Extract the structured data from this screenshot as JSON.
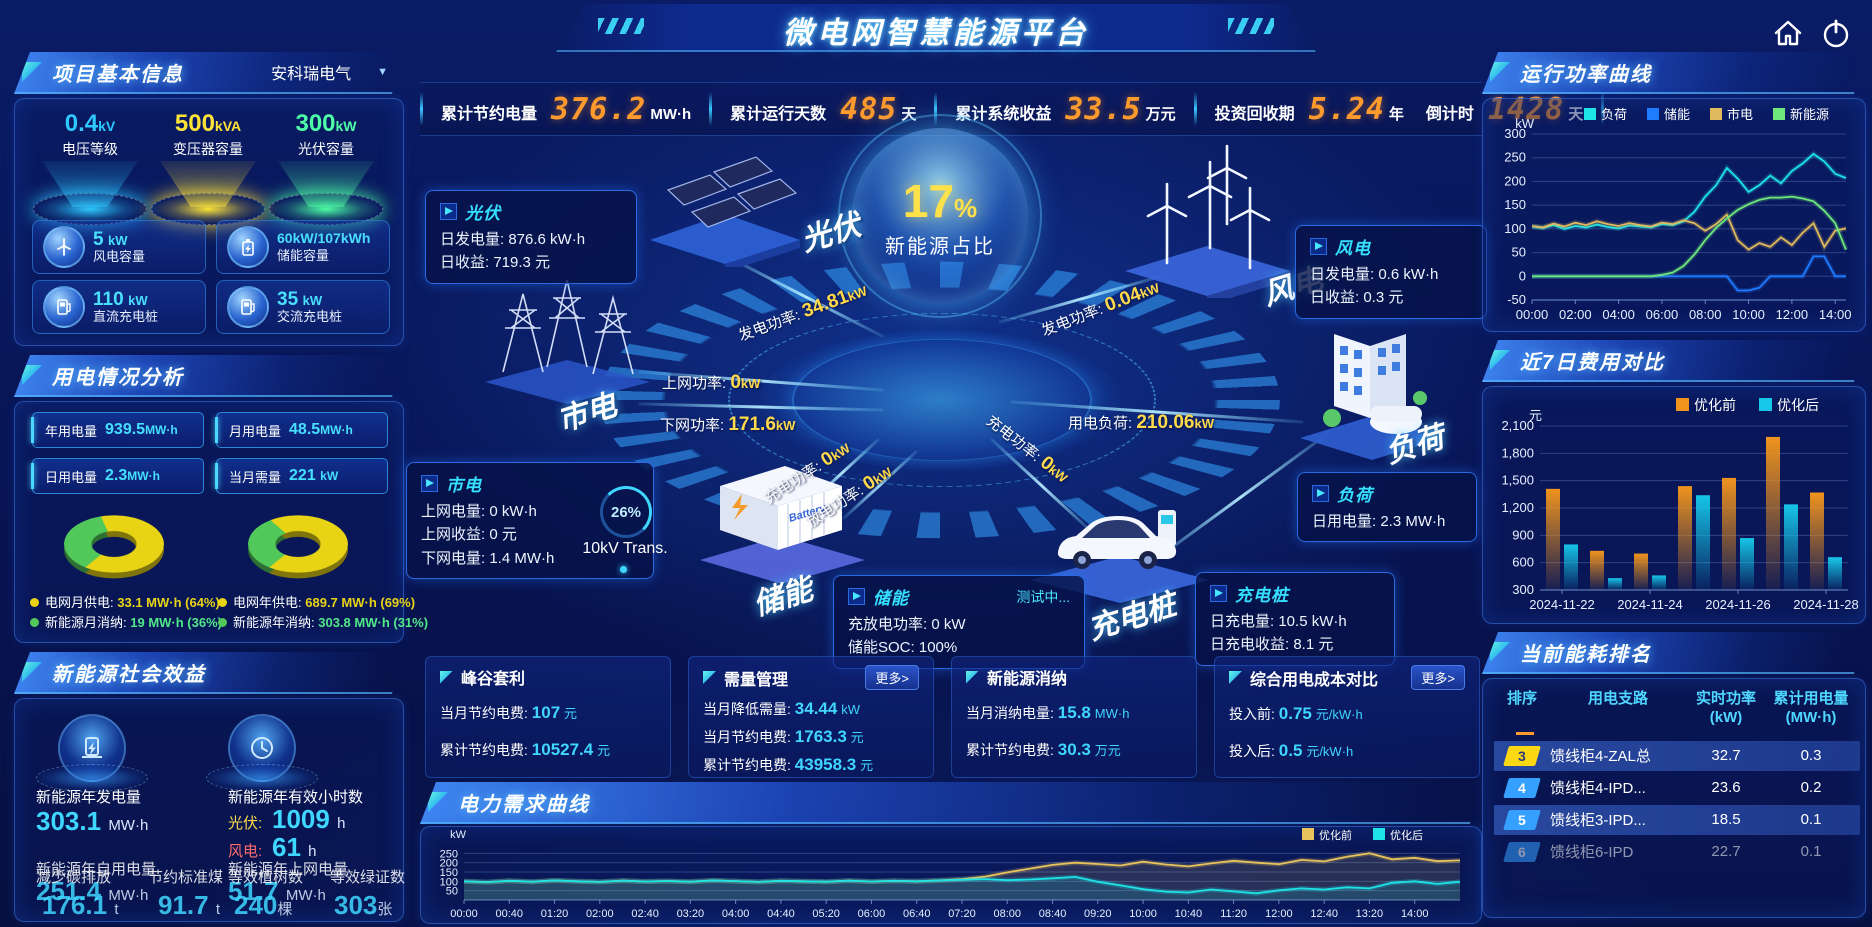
{
  "header": {
    "title": "微电网智慧能源平台"
  },
  "topbar": {
    "stats": [
      {
        "label": "累计节约电量",
        "value": "376.2",
        "unit": "MW·h"
      },
      {
        "label": "累计运行天数",
        "value": "485",
        "unit": "天"
      },
      {
        "label": "累计系统收益",
        "value": "33.5",
        "unit": "万元"
      },
      {
        "label": "投资回收期",
        "value": "5.24",
        "unit": "年"
      },
      {
        "label": "倒计时",
        "value": "1428",
        "unit": "天"
      }
    ]
  },
  "left": {
    "project": {
      "title": "项目基本信息",
      "company": "安科瑞电气",
      "pedestals": [
        {
          "value": "0.4",
          "unit": "kV",
          "label": "电压等级",
          "color": "#2ec8ff"
        },
        {
          "value": "500",
          "unit": "kVA",
          "label": "变压器容量",
          "color": "#ffe339"
        },
        {
          "value": "300",
          "unit": "kW",
          "label": "光伏容量",
          "color": "#4dffa6"
        }
      ],
      "cards": [
        {
          "value": "5",
          "unit": "kW",
          "label": "风电容量"
        },
        {
          "value": "60kW/107kWh",
          "unit": "",
          "label": "储能容量"
        },
        {
          "value": "110",
          "unit": "kW",
          "label": "直流充电桩"
        },
        {
          "value": "35",
          "unit": "kW",
          "label": "交流充电桩"
        }
      ]
    },
    "usage": {
      "title": "用电情况分析",
      "stats": [
        {
          "label": "年用电量",
          "value": "939.5",
          "unit": "MW·h"
        },
        {
          "label": "月用电量",
          "value": "48.5",
          "unit": "MW·h"
        },
        {
          "label": "日用电量",
          "value": "2.3",
          "unit": "MW·h"
        },
        {
          "label": "当月需量",
          "value": "221",
          "unit": "kW"
        }
      ],
      "month_donut": {
        "type": "pie",
        "slices": [
          {
            "label": "电网月供电",
            "value": 64,
            "color": "#e8d415"
          },
          {
            "label": "新能源月消纳",
            "value": 36,
            "color": "#52c85a"
          }
        ]
      },
      "year_donut": {
        "type": "pie",
        "slices": [
          {
            "label": "电网年供电",
            "value": 69,
            "color": "#e8d415"
          },
          {
            "label": "新能源年消纳",
            "value": 31,
            "color": "#52c85a"
          }
        ]
      },
      "legends": [
        {
          "label": "电网月供电:",
          "value": "33.1 MW·h (64%)",
          "color": "#e8d415"
        },
        {
          "label": "新能源月消纳:",
          "value": "19 MW·h (36%)",
          "color": "#52c85a"
        },
        {
          "label": "电网年供电:",
          "value": "689.7 MW·h (69%)",
          "color": "#e8d415"
        },
        {
          "label": "新能源年消纳:",
          "value": "303.8 MW·h (31%)",
          "color": "#52c85a"
        }
      ]
    },
    "benefits": {
      "title": "新能源社会效益",
      "gen": {
        "label": "新能源年发电量",
        "value": "303.1",
        "unit": "MW·h"
      },
      "hours": {
        "label": "新能源年有效小时数",
        "pv_k": "光伏:",
        "pv_v": "1009",
        "pv_u": "h",
        "wind_k": "风电:",
        "wind_v": "61",
        "wind_u": "h"
      },
      "self_use": {
        "label": "新能源年自用电量",
        "value": "251.4",
        "unit": "MW·h"
      },
      "to_grid": {
        "label": "新能源年上网电量",
        "value": "51.7",
        "unit": "MW·h"
      },
      "co2": {
        "label": "减少碳排放",
        "value": "176.1",
        "unit": "t"
      },
      "coal": {
        "label": "节约标准煤",
        "value": "91.7",
        "unit": "t"
      },
      "trees": {
        "label": "等效植树数",
        "value": "240",
        "unit": "棵"
      },
      "certs": {
        "label": "等效绿证数",
        "value": "303",
        "unit": "张"
      }
    }
  },
  "center": {
    "bubble": {
      "percent": "17",
      "pct_sign": "%",
      "label": "新能源占比"
    },
    "nodes": {
      "pv": {
        "name": "光伏"
      },
      "wind": {
        "name": "风电"
      },
      "grid": {
        "name": "市电"
      },
      "load": {
        "name": "负荷"
      },
      "storage": {
        "name": "储能"
      },
      "charger": {
        "name": "充电桩"
      }
    },
    "panels": {
      "pv": {
        "title": "光伏",
        "r1k": "日发电量:",
        "r1v": "876.6 kW·h",
        "r2k": "日收益:",
        "r2v": "719.3 元"
      },
      "wind": {
        "title": "风电",
        "r1k": "日发电量:",
        "r1v": "0.6 kW·h",
        "r2k": "日收益:",
        "r2v": "0.3 元"
      },
      "grid": {
        "title": "市电",
        "r1k": "上网电量:",
        "r1v": "0 kW·h",
        "r2k": "上网收益:",
        "r2v": "0 元",
        "r3k": "下网电量:",
        "r3v": "1.4 MW·h"
      },
      "load": {
        "title": "负荷",
        "r1k": "日用电量:",
        "r1v": "2.3 MW·h"
      },
      "storage": {
        "title": "储能",
        "status": "测试中...",
        "r1k": "充放电功率:",
        "r1v": "0 kW",
        "r2k": "储能SOC:",
        "r2v": "100%"
      },
      "charger": {
        "title": "充电桩",
        "r1k": "日充电量:",
        "r1v": "10.5 kW·h",
        "r2k": "日充电收益:",
        "r2v": "8.1 元"
      }
    },
    "flows": [
      {
        "label": "发电功率:",
        "value": "34.81",
        "unit": "kW"
      },
      {
        "label": "上网功率:",
        "value": "0",
        "unit": "kW"
      },
      {
        "label": "下网功率:",
        "value": "171.6",
        "unit": "kW"
      },
      {
        "label": "发电功率:",
        "value": "0.04",
        "unit": "kW"
      },
      {
        "label": "用电负荷:",
        "value": "210.06",
        "unit": "kW"
      },
      {
        "label": "充电功率:",
        "value": "0",
        "unit": "kW"
      },
      {
        "label": "放电功率:",
        "value": "0",
        "unit": "kW"
      },
      {
        "label": "充电功率:",
        "value": "0",
        "unit": "kW"
      }
    ],
    "transformer": {
      "percent": "26%",
      "label": "10kV Trans."
    },
    "kpi_panels": [
      {
        "title": "峰谷套利",
        "more": "",
        "rows": [
          {
            "k": "当月节约电费:",
            "v": "107",
            "u": "元"
          },
          {
            "k": "累计节约电费:",
            "v": "10527.4",
            "u": "元"
          }
        ]
      },
      {
        "title": "需量管理",
        "more": "更多>",
        "rows": [
          {
            "k": "当月降低需量:",
            "v": "34.44",
            "u": "kW"
          },
          {
            "k": "当月节约电费:",
            "v": "1763.3",
            "u": "元"
          },
          {
            "k": "累计节约电费:",
            "v": "43958.3",
            "u": "元"
          }
        ]
      },
      {
        "title": "新能源消纳",
        "more": "",
        "rows": [
          {
            "k": "当月消纳电量:",
            "v": "15.8",
            "u": "MW·h"
          },
          {
            "k": "累计节约电费:",
            "v": "30.3",
            "u": "万元"
          }
        ]
      },
      {
        "title": "综合用电成本对比",
        "more": "更多>",
        "rows": [
          {
            "k": "投入前:",
            "v": "0.75",
            "u": "元/kW·h"
          },
          {
            "k": "投入后:",
            "v": "0.5",
            "u": "元/kW·h"
          }
        ]
      }
    ],
    "demand_title": "电力需求曲线"
  },
  "right": {
    "power_title": "运行功率曲线",
    "cost_title": "近7日费用对比",
    "ranking": {
      "title": "当前能耗排名",
      "columns": [
        {
          "t": "排序",
          "u": ""
        },
        {
          "t": "用电支路",
          "u": ""
        },
        {
          "t": "实时功率",
          "u": "(kW)"
        },
        {
          "t": "累计用电量",
          "u": "(MW·h)"
        }
      ],
      "rows": [
        {
          "rank": "3",
          "name": "馈线柜4-ZAL总",
          "power": "32.7",
          "energy": "0.3"
        },
        {
          "rank": "4",
          "name": "馈线柜4-IPD...",
          "power": "23.6",
          "energy": "0.2"
        },
        {
          "rank": "5",
          "name": "馈线柜3-IPD...",
          "power": "18.5",
          "energy": "0.1"
        },
        {
          "rank": "6",
          "name": "馈线柜6-IPD",
          "power": "22.7",
          "energy": "0.1"
        }
      ]
    }
  },
  "chart_data": [
    {
      "id": "power-curve",
      "type": "line",
      "title": "运行功率曲线",
      "ylabel": "kW",
      "ylim": [
        -50,
        300
      ],
      "yticks": [
        300,
        250,
        200,
        150,
        100,
        50,
        0,
        -50
      ],
      "x_hours_max": 14.5,
      "xtick_hours": [
        0,
        2,
        4,
        6,
        8,
        10,
        12,
        14
      ],
      "xticks": [
        "00:00",
        "02:00",
        "04:00",
        "06:00",
        "08:00",
        "10:00",
        "12:00",
        "14:00"
      ],
      "legend_position": "top",
      "grid": true,
      "series": [
        {
          "name": "负荷",
          "color": "#1ee3e6",
          "values": [
            105,
            102,
            108,
            100,
            106,
            103,
            109,
            104,
            101,
            107,
            105,
            103,
            110,
            108,
            116,
            136,
            168,
            192,
            228,
            206,
            178,
            192,
            212,
            196,
            222,
            238,
            258,
            242,
            216,
            207
          ]
        },
        {
          "name": "储能",
          "color": "#1f7bff",
          "values": [
            0,
            0,
            0,
            0,
            0,
            0,
            0,
            0,
            0,
            0,
            0,
            0,
            0,
            0,
            0,
            0,
            0,
            0,
            0,
            -30,
            -30,
            -24,
            0,
            0,
            0,
            0,
            42,
            42,
            0,
            0
          ]
        },
        {
          "name": "市电",
          "color": "#e0b95c",
          "values": [
            106,
            103,
            111,
            105,
            113,
            108,
            116,
            110,
            106,
            112,
            108,
            105,
            113,
            110,
            118,
            112,
            96,
            110,
            130,
            76,
            56,
            70,
            62,
            82,
            66,
            92,
            112,
            62,
            96,
            101
          ]
        },
        {
          "name": "新能源",
          "color": "#6ee87a",
          "values": [
            0,
            0,
            0,
            0,
            0,
            0,
            0,
            0,
            0,
            0,
            0,
            0,
            3,
            8,
            22,
            46,
            76,
            102,
            122,
            140,
            152,
            161,
            166,
            166,
            168,
            164,
            158,
            138,
            112,
            56
          ]
        }
      ]
    },
    {
      "id": "cost-compare",
      "type": "bar",
      "title": "近7日费用对比",
      "ylabel": "元",
      "ylim": [
        300,
        2100
      ],
      "yticks": [
        2100,
        1800,
        1500,
        1200,
        900,
        600,
        300
      ],
      "categories": [
        "2024-11-22",
        "2024-11-23",
        "2024-11-24",
        "2024-11-25",
        "2024-11-26",
        "2024-11-27",
        "2024-11-28"
      ],
      "xtick_labels": [
        "2024-11-22",
        "2024-11-24",
        "2024-11-26",
        "2024-11-28"
      ],
      "legend_position": "top",
      "grid": true,
      "series": [
        {
          "name": "优化前",
          "color": "#f0941e",
          "values": [
            1410,
            730,
            700,
            1440,
            1530,
            1980,
            1370
          ]
        },
        {
          "name": "优化后",
          "color": "#17c6e8",
          "values": [
            800,
            430,
            460,
            1340,
            870,
            1240,
            660
          ]
        }
      ]
    },
    {
      "id": "demand-curve",
      "type": "line",
      "title": "电力需求曲线",
      "ylabel": "kW",
      "ylim": [
        0,
        300
      ],
      "yticks": [
        250,
        200,
        150,
        100,
        50
      ],
      "x_hours_max": 14.667,
      "xtick_hours": [
        0,
        0.667,
        1.333,
        2,
        2.667,
        3.333,
        4,
        4.667,
        5.333,
        6,
        6.667,
        7.333,
        8,
        8.667,
        9.333,
        10,
        10.667,
        11.333,
        12,
        12.667,
        13.333,
        14
      ],
      "xticks": [
        "00:00",
        "00:40",
        "01:20",
        "02:00",
        "02:40",
        "03:20",
        "04:00",
        "04:40",
        "05:20",
        "06:00",
        "06:40",
        "07:20",
        "08:00",
        "08:40",
        "09:20",
        "10:00",
        "10:40",
        "11:20",
        "12:00",
        "12:40",
        "13:20",
        "14:00"
      ],
      "legend_position": "top-right",
      "grid": true,
      "fill": true,
      "series": [
        {
          "name": "优化前",
          "color": "#e8c35c",
          "values": [
            100,
            96,
            103,
            98,
            105,
            100,
            97,
            104,
            99,
            102,
            98,
            105,
            101,
            97,
            103,
            100,
            98,
            104,
            99,
            103,
            100,
            105,
            112,
            125,
            148,
            168,
            188,
            200,
            193,
            185,
            205,
            190,
            180,
            196,
            210,
            200,
            192,
            215,
            207,
            232,
            250,
            218,
            226,
            208,
            212
          ]
        },
        {
          "name": "优化后",
          "color": "#1ee3e6",
          "values": [
            100,
            96,
            103,
            98,
            105,
            100,
            97,
            104,
            99,
            102,
            98,
            105,
            101,
            97,
            103,
            100,
            98,
            104,
            99,
            103,
            100,
            105,
            108,
            112,
            106,
            110,
            116,
            124,
            98,
            78,
            58,
            45,
            40,
            56,
            46,
            36,
            52,
            62,
            56,
            68,
            62,
            92,
            100,
            86,
            98
          ]
        }
      ]
    }
  ]
}
